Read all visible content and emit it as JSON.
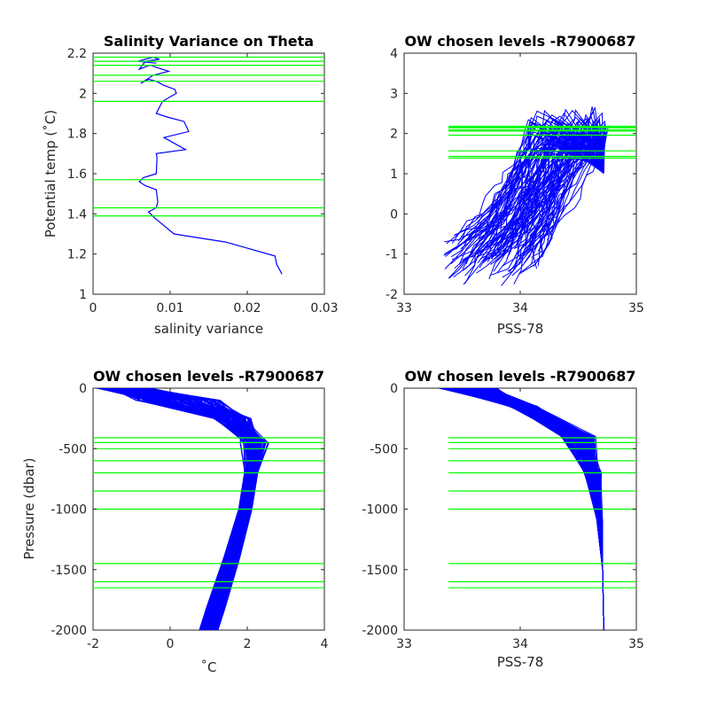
{
  "colors": {
    "profile": "#0000ff",
    "levels": "#00ff00",
    "axis": "#262626"
  },
  "chart_data": [
    {
      "type": "line",
      "title": "Salinity Variance on Theta",
      "xlabel": "salinity variance",
      "ylabel": "Potential temp (˚C)",
      "xlim": [
        0,
        0.03
      ],
      "ylim": [
        1,
        2.2
      ],
      "xticks": [
        "0",
        "0.01",
        "0.02",
        "0.03"
      ],
      "yticks": [
        "1",
        "1.2",
        "1.4",
        "1.6",
        "1.8",
        "2",
        "2.2"
      ],
      "series": [
        {
          "x": [
            0.0245,
            0.0238,
            0.0236,
            0.0172,
            0.0105,
            0.008,
            0.0072,
            0.0082,
            0.0084,
            0.0082,
            0.0068,
            0.006,
            0.0065,
            0.0082,
            0.0083,
            0.0082,
            0.012,
            0.0092,
            0.0124,
            0.0118,
            0.0098,
            0.0082,
            0.009,
            0.0108,
            0.0106,
            0.0092,
            0.0082,
            0.0072,
            0.0062,
            0.0078,
            0.0098,
            0.0082,
            0.0074,
            0.006,
            0.0068,
            0.0086,
            0.0078,
            0.0058,
            0.0082
          ],
          "y": [
            1.1,
            1.15,
            1.19,
            1.26,
            1.3,
            1.38,
            1.41,
            1.43,
            1.46,
            1.52,
            1.54,
            1.56,
            1.58,
            1.6,
            1.68,
            1.7,
            1.72,
            1.78,
            1.81,
            1.86,
            1.88,
            1.9,
            1.96,
            2.0,
            2.02,
            2.04,
            2.06,
            2.07,
            2.05,
            2.09,
            2.11,
            2.13,
            2.14,
            2.12,
            2.16,
            2.17,
            2.18,
            2.16,
            2.15
          ]
        }
      ],
      "hlines": [
        1.39,
        1.43,
        1.57,
        1.96,
        2.06,
        2.09,
        2.14,
        2.16,
        2.18
      ]
    },
    {
      "type": "line",
      "title": "OW chosen levels -R7900687",
      "xlabel": "PSS-78",
      "ylabel": "",
      "xlim": [
        33,
        35
      ],
      "ylim": [
        -2,
        4
      ],
      "xticks": [
        "33",
        "34",
        "35"
      ],
      "yticks": [
        "-2",
        "-1",
        "0",
        "1",
        "2",
        "3",
        "4"
      ],
      "hlines": [
        1.39,
        1.43,
        1.57,
        1.96,
        2.06,
        2.09,
        2.14,
        2.16,
        2.18
      ]
    },
    {
      "type": "line",
      "title": "OW chosen levels -R7900687",
      "xlabel": "˚C",
      "ylabel": "Pressure (dbar)",
      "xlim": [
        -2,
        4
      ],
      "ylim": [
        -2000,
        0
      ],
      "xticks": [
        "-2",
        "0",
        "2",
        "4"
      ],
      "yticks": [
        "-2000",
        "-1500",
        "-1000",
        "-500",
        "0"
      ],
      "hlines": [
        -410,
        -450,
        -500,
        -600,
        -700,
        -850,
        -1000,
        -1450,
        -1600,
        -1650
      ]
    },
    {
      "type": "line",
      "title": "OW chosen levels -R7900687",
      "xlabel": "PSS-78",
      "ylabel": "",
      "xlim": [
        33,
        35
      ],
      "ylim": [
        -2000,
        0
      ],
      "xticks": [
        "33",
        "34",
        "35"
      ],
      "yticks": [
        "-2000",
        "-1500",
        "-1000",
        "-500",
        "0"
      ],
      "hlines": [
        -410,
        -450,
        -500,
        -600,
        -700,
        -850,
        -1000,
        -1450,
        -1600,
        -1650
      ]
    }
  ]
}
